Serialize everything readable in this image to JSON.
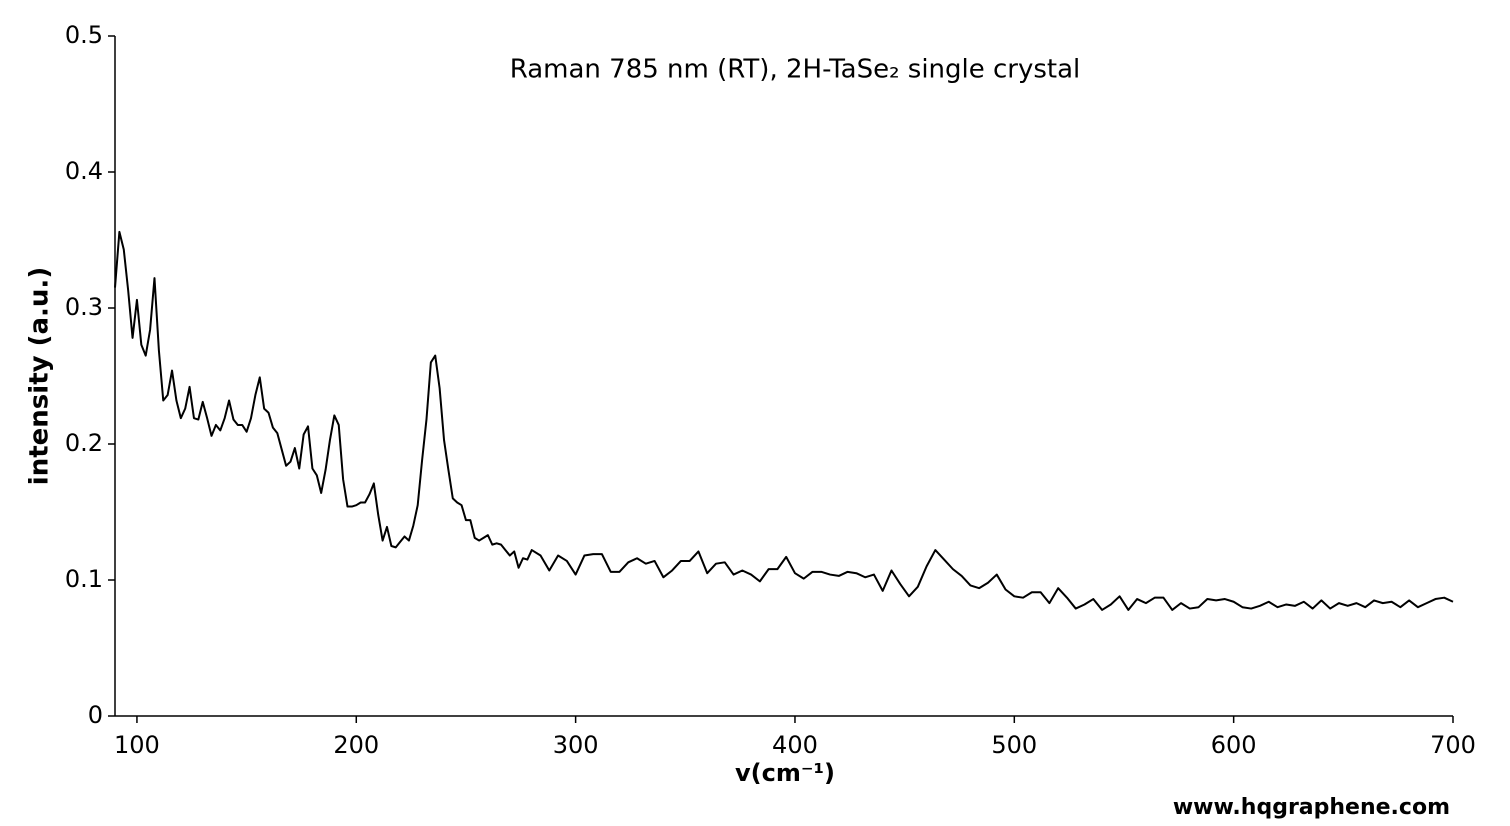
{
  "chart_data": {
    "type": "line",
    "title": "Raman 785 nm (RT), 2H-TaSe₂ single crystal",
    "x_label": "v(cm⁻¹)",
    "y_label": "intensity (a.u.)",
    "watermark": "www.hqgraphene.com",
    "color": "#000000",
    "xlim": [
      90,
      700
    ],
    "xticks": [
      100,
      200,
      300,
      400,
      500,
      600,
      700
    ],
    "ylim": [
      0,
      0.5
    ],
    "yticks": [
      0,
      0.1,
      0.2,
      0.3,
      0.4,
      0.5
    ],
    "grid": false,
    "x": [
      90,
      92,
      94,
      96,
      98,
      100,
      102,
      104,
      106,
      108,
      110,
      112,
      114,
      116,
      118,
      120,
      122,
      124,
      126,
      128,
      130,
      132,
      134,
      136,
      138,
      140,
      142,
      144,
      146,
      148,
      150,
      152,
      154,
      156,
      158,
      160,
      162,
      164,
      166,
      168,
      170,
      172,
      174,
      176,
      178,
      180,
      182,
      184,
      186,
      188,
      190,
      192,
      194,
      196,
      198,
      200,
      202,
      204,
      206,
      208,
      210,
      212,
      214,
      216,
      218,
      220,
      222,
      224,
      226,
      228,
      230,
      232,
      234,
      236,
      238,
      240,
      242,
      244,
      246,
      248,
      250,
      252,
      254,
      256,
      258,
      260,
      262,
      264,
      266,
      268,
      270,
      272,
      274,
      276,
      278,
      280,
      284,
      288,
      292,
      296,
      300,
      304,
      308,
      312,
      316,
      320,
      324,
      328,
      332,
      336,
      340,
      344,
      348,
      352,
      356,
      360,
      364,
      368,
      372,
      376,
      380,
      384,
      388,
      392,
      396,
      400,
      404,
      408,
      412,
      416,
      420,
      424,
      428,
      432,
      436,
      440,
      444,
      448,
      452,
      456,
      460,
      464,
      468,
      472,
      476,
      480,
      484,
      488,
      492,
      496,
      500,
      504,
      508,
      512,
      516,
      520,
      524,
      528,
      532,
      536,
      540,
      544,
      548,
      552,
      556,
      560,
      564,
      568,
      572,
      576,
      580,
      584,
      588,
      592,
      596,
      600,
      604,
      608,
      612,
      616,
      620,
      624,
      628,
      632,
      636,
      640,
      644,
      648,
      652,
      656,
      660,
      664,
      668,
      672,
      676,
      680,
      684,
      688,
      692,
      696,
      700
    ],
    "values": [
      0.315,
      0.356,
      0.343,
      0.313,
      0.278,
      0.306,
      0.273,
      0.265,
      0.284,
      0.322,
      0.269,
      0.232,
      0.236,
      0.254,
      0.232,
      0.219,
      0.226,
      0.242,
      0.219,
      0.218,
      0.231,
      0.219,
      0.206,
      0.214,
      0.21,
      0.219,
      0.232,
      0.218,
      0.214,
      0.214,
      0.209,
      0.219,
      0.236,
      0.249,
      0.226,
      0.223,
      0.212,
      0.208,
      0.196,
      0.184,
      0.187,
      0.197,
      0.182,
      0.207,
      0.213,
      0.182,
      0.177,
      0.164,
      0.181,
      0.203,
      0.221,
      0.214,
      0.174,
      0.154,
      0.154,
      0.155,
      0.157,
      0.157,
      0.163,
      0.171,
      0.148,
      0.129,
      0.139,
      0.125,
      0.124,
      0.128,
      0.132,
      0.129,
      0.14,
      0.155,
      0.188,
      0.218,
      0.26,
      0.265,
      0.241,
      0.203,
      0.181,
      0.16,
      0.157,
      0.155,
      0.144,
      0.144,
      0.131,
      0.129,
      0.131,
      0.133,
      0.126,
      0.127,
      0.126,
      0.122,
      0.118,
      0.121,
      0.109,
      0.116,
      0.115,
      0.122,
      0.118,
      0.107,
      0.118,
      0.114,
      0.104,
      0.118,
      0.119,
      0.119,
      0.106,
      0.106,
      0.113,
      0.116,
      0.112,
      0.114,
      0.102,
      0.107,
      0.114,
      0.114,
      0.121,
      0.105,
      0.112,
      0.113,
      0.104,
      0.107,
      0.104,
      0.099,
      0.108,
      0.108,
      0.117,
      0.105,
      0.101,
      0.106,
      0.106,
      0.104,
      0.103,
      0.106,
      0.105,
      0.102,
      0.104,
      0.092,
      0.107,
      0.097,
      0.088,
      0.095,
      0.11,
      0.122,
      0.115,
      0.108,
      0.103,
      0.096,
      0.094,
      0.098,
      0.104,
      0.093,
      0.088,
      0.087,
      0.091,
      0.091,
      0.083,
      0.094,
      0.087,
      0.079,
      0.082,
      0.086,
      0.078,
      0.082,
      0.088,
      0.078,
      0.086,
      0.083,
      0.087,
      0.087,
      0.078,
      0.083,
      0.079,
      0.08,
      0.086,
      0.085,
      0.086,
      0.084,
      0.08,
      0.079,
      0.081,
      0.084,
      0.08,
      0.082,
      0.081,
      0.084,
      0.079,
      0.085,
      0.079,
      0.083,
      0.081,
      0.083,
      0.08,
      0.085,
      0.083,
      0.084,
      0.08,
      0.085,
      0.08,
      0.083,
      0.086,
      0.087,
      0.084
    ]
  }
}
